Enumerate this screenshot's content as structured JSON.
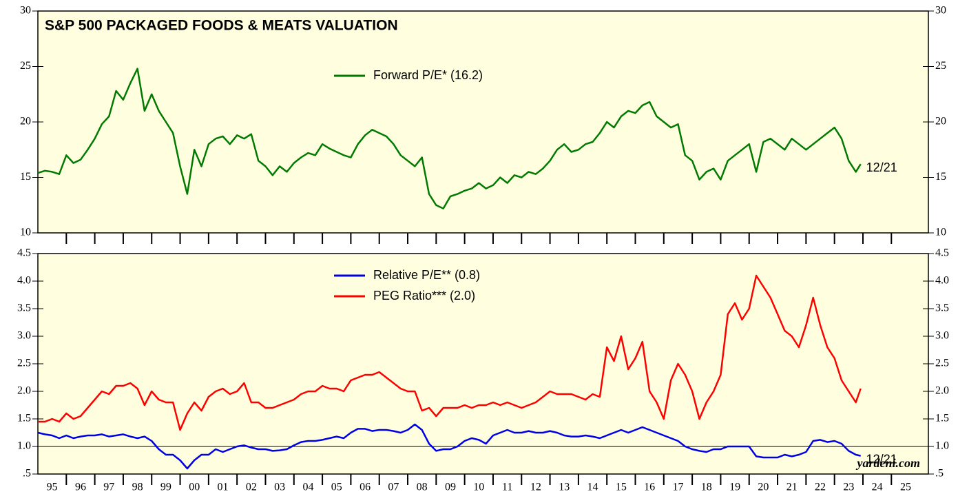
{
  "chart_data": [
    {
      "type": "line",
      "title": "S&P 500 PACKAGED FOODS & MEATS VALUATION",
      "x": [
        1995,
        1995.25,
        1995.5,
        1995.75,
        1996,
        1996.25,
        1996.5,
        1996.75,
        1997,
        1997.25,
        1997.5,
        1997.75,
        1998,
        1998.25,
        1998.5,
        1998.75,
        1999,
        1999.25,
        1999.5,
        1999.75,
        2000,
        2000.25,
        2000.5,
        2000.75,
        2001,
        2001.25,
        2001.5,
        2001.75,
        2002,
        2002.25,
        2002.5,
        2002.75,
        2003,
        2003.25,
        2003.5,
        2003.75,
        2004,
        2004.25,
        2004.5,
        2004.75,
        2005,
        2005.25,
        2005.5,
        2005.75,
        2006,
        2006.25,
        2006.5,
        2006.75,
        2007,
        2007.25,
        2007.5,
        2007.75,
        2008,
        2008.25,
        2008.5,
        2008.75,
        2009,
        2009.25,
        2009.5,
        2009.75,
        2010,
        2010.25,
        2010.5,
        2010.75,
        2011,
        2011.25,
        2011.5,
        2011.75,
        2012,
        2012.25,
        2012.5,
        2012.75,
        2013,
        2013.25,
        2013.5,
        2013.75,
        2014,
        2014.25,
        2014.5,
        2014.75,
        2015,
        2015.25,
        2015.5,
        2015.75,
        2016,
        2016.25,
        2016.5,
        2016.75,
        2017,
        2017.25,
        2017.5,
        2017.75,
        2018,
        2018.25,
        2018.5,
        2018.75,
        2019,
        2019.25,
        2019.5,
        2019.75,
        2020,
        2020.25,
        2020.5,
        2020.75,
        2021,
        2021.25,
        2021.5,
        2021.75,
        2022,
        2022.25,
        2022.5,
        2022.75,
        2023,
        2023.25,
        2023.5,
        2023.75,
        2023.92
      ],
      "xlim": [
        1995,
        2026.3
      ],
      "ylim": [
        10,
        30
      ],
      "yticks": [
        10,
        15,
        20,
        25,
        30
      ],
      "legend": "top-center",
      "series": [
        {
          "name": "Forward P/E* (16.2)",
          "color": "#007a00",
          "values": [
            15.4,
            15.6,
            15.5,
            15.3,
            17.0,
            16.3,
            16.6,
            17.5,
            18.5,
            19.8,
            20.5,
            22.8,
            22.0,
            23.5,
            24.8,
            21.0,
            22.5,
            21.0,
            20.0,
            19.0,
            16.0,
            13.5,
            17.5,
            16.0,
            18.0,
            18.5,
            18.7,
            18.0,
            18.8,
            18.5,
            18.9,
            16.5,
            16.0,
            15.2,
            16.0,
            15.5,
            16.3,
            16.8,
            17.2,
            17.0,
            18.0,
            17.6,
            17.3,
            17.0,
            16.8,
            18.0,
            18.8,
            19.3,
            19.0,
            18.7,
            18.0,
            17.0,
            16.5,
            16.0,
            16.8,
            13.5,
            12.5,
            12.2,
            13.3,
            13.5,
            13.8,
            14.0,
            14.5,
            14.0,
            14.3,
            15.0,
            14.5,
            15.2,
            15.0,
            15.5,
            15.3,
            15.8,
            16.5,
            17.5,
            18.0,
            17.3,
            17.5,
            18.0,
            18.2,
            19.0,
            20.0,
            19.5,
            20.5,
            21.0,
            20.8,
            21.5,
            21.8,
            20.5,
            20.0,
            19.5,
            19.8,
            17.0,
            16.5,
            14.8,
            15.5,
            15.8,
            14.8,
            16.5,
            17.0,
            17.5,
            18.0,
            15.5,
            18.2,
            18.5,
            18.0,
            17.5,
            18.5,
            18.0,
            17.5,
            18.0,
            18.5,
            19.0,
            19.5,
            18.5,
            16.5,
            15.5,
            16.2
          ]
        }
      ],
      "annotations": [
        {
          "text": "12/21"
        }
      ]
    },
    {
      "type": "line",
      "x": [
        1995,
        1995.25,
        1995.5,
        1995.75,
        1996,
        1996.25,
        1996.5,
        1996.75,
        1997,
        1997.25,
        1997.5,
        1997.75,
        1998,
        1998.25,
        1998.5,
        1998.75,
        1999,
        1999.25,
        1999.5,
        1999.75,
        2000,
        2000.25,
        2000.5,
        2000.75,
        2001,
        2001.25,
        2001.5,
        2001.75,
        2002,
        2002.25,
        2002.5,
        2002.75,
        2003,
        2003.25,
        2003.5,
        2003.75,
        2004,
        2004.25,
        2004.5,
        2004.75,
        2005,
        2005.25,
        2005.5,
        2005.75,
        2006,
        2006.25,
        2006.5,
        2006.75,
        2007,
        2007.25,
        2007.5,
        2007.75,
        2008,
        2008.25,
        2008.5,
        2008.75,
        2009,
        2009.25,
        2009.5,
        2009.75,
        2010,
        2010.25,
        2010.5,
        2010.75,
        2011,
        2011.25,
        2011.5,
        2011.75,
        2012,
        2012.25,
        2012.5,
        2012.75,
        2013,
        2013.25,
        2013.5,
        2013.75,
        2014,
        2014.25,
        2014.5,
        2014.75,
        2015,
        2015.25,
        2015.5,
        2015.75,
        2016,
        2016.25,
        2016.5,
        2016.75,
        2017,
        2017.25,
        2017.5,
        2017.75,
        2018,
        2018.25,
        2018.5,
        2018.75,
        2019,
        2019.25,
        2019.5,
        2019.75,
        2020,
        2020.25,
        2020.5,
        2020.75,
        2021,
        2021.25,
        2021.5,
        2021.75,
        2022,
        2022.25,
        2022.5,
        2022.75,
        2023,
        2023.25,
        2023.5,
        2023.75,
        2023.92
      ],
      "xlim": [
        1995,
        2026.3
      ],
      "xticks": [
        {
          "value": 1995,
          "label": "95"
        },
        {
          "value": 1996,
          "label": "96"
        },
        {
          "value": 1997,
          "label": "97"
        },
        {
          "value": 1998,
          "label": "98"
        },
        {
          "value": 1999,
          "label": "99"
        },
        {
          "value": 2000,
          "label": "00"
        },
        {
          "value": 2001,
          "label": "01"
        },
        {
          "value": 2002,
          "label": "02"
        },
        {
          "value": 2003,
          "label": "03"
        },
        {
          "value": 2004,
          "label": "04"
        },
        {
          "value": 2005,
          "label": "05"
        },
        {
          "value": 2006,
          "label": "06"
        },
        {
          "value": 2007,
          "label": "07"
        },
        {
          "value": 2008,
          "label": "08"
        },
        {
          "value": 2009,
          "label": "09"
        },
        {
          "value": 2010,
          "label": "10"
        },
        {
          "value": 2011,
          "label": "11"
        },
        {
          "value": 2012,
          "label": "12"
        },
        {
          "value": 2013,
          "label": "13"
        },
        {
          "value": 2014,
          "label": "14"
        },
        {
          "value": 2015,
          "label": "15"
        },
        {
          "value": 2016,
          "label": "16"
        },
        {
          "value": 2017,
          "label": "17"
        },
        {
          "value": 2018,
          "label": "18"
        },
        {
          "value": 2019,
          "label": "19"
        },
        {
          "value": 2020,
          "label": "20"
        },
        {
          "value": 2021,
          "label": "21"
        },
        {
          "value": 2022,
          "label": "22"
        },
        {
          "value": 2023,
          "label": "23"
        },
        {
          "value": 2024,
          "label": "24"
        },
        {
          "value": 2025,
          "label": "25"
        }
      ],
      "ylim": [
        0.5,
        4.5
      ],
      "yticks": [
        {
          "value": 0.5,
          "label": ".5"
        },
        {
          "value": 1,
          "label": "1.0"
        },
        1.5,
        {
          "value": 2,
          "label": "2.0"
        },
        2.5,
        {
          "value": 3,
          "label": "3.0"
        },
        3.5,
        {
          "value": 4,
          "label": "4.0"
        },
        4.5
      ],
      "hline": 1,
      "legend": "top-center",
      "series": [
        {
          "name": "Relative P/E** (0.8)",
          "color": "#0000e6",
          "values": [
            1.25,
            1.22,
            1.2,
            1.15,
            1.2,
            1.15,
            1.18,
            1.2,
            1.2,
            1.22,
            1.18,
            1.2,
            1.22,
            1.18,
            1.15,
            1.18,
            1.1,
            0.95,
            0.85,
            0.85,
            0.75,
            0.6,
            0.75,
            0.85,
            0.85,
            0.95,
            0.9,
            0.95,
            1.0,
            1.02,
            0.98,
            0.95,
            0.95,
            0.92,
            0.93,
            0.95,
            1.02,
            1.08,
            1.1,
            1.1,
            1.12,
            1.15,
            1.18,
            1.15,
            1.25,
            1.32,
            1.32,
            1.28,
            1.3,
            1.3,
            1.28,
            1.25,
            1.3,
            1.4,
            1.3,
            1.05,
            0.92,
            0.95,
            0.95,
            1.0,
            1.1,
            1.15,
            1.12,
            1.05,
            1.2,
            1.25,
            1.3,
            1.25,
            1.25,
            1.28,
            1.25,
            1.25,
            1.28,
            1.25,
            1.2,
            1.18,
            1.18,
            1.2,
            1.18,
            1.15,
            1.2,
            1.25,
            1.3,
            1.25,
            1.3,
            1.35,
            1.3,
            1.25,
            1.2,
            1.15,
            1.1,
            1.0,
            0.95,
            0.92,
            0.9,
            0.95,
            0.95,
            1.0,
            1.0,
            1.0,
            1.0,
            0.82,
            0.8,
            0.8,
            0.8,
            0.85,
            0.82,
            0.85,
            0.9,
            1.1,
            1.12,
            1.08,
            1.1,
            1.05,
            0.92,
            0.85,
            0.83
          ]
        },
        {
          "name": "PEG Ratio*** (2.0)",
          "color": "#ff0000",
          "values": [
            1.45,
            1.45,
            1.5,
            1.45,
            1.6,
            1.5,
            1.55,
            1.7,
            1.85,
            2.0,
            1.95,
            2.1,
            2.1,
            2.15,
            2.05,
            1.75,
            2.0,
            1.85,
            1.8,
            1.8,
            1.3,
            1.6,
            1.8,
            1.65,
            1.9,
            2.0,
            2.05,
            1.95,
            2.0,
            2.15,
            1.8,
            1.8,
            1.7,
            1.7,
            1.75,
            1.8,
            1.85,
            1.95,
            2.0,
            2.0,
            2.1,
            2.05,
            2.05,
            2.0,
            2.2,
            2.25,
            2.3,
            2.3,
            2.35,
            2.25,
            2.15,
            2.05,
            2.0,
            2.0,
            1.65,
            1.7,
            1.55,
            1.7,
            1.7,
            1.7,
            1.75,
            1.7,
            1.75,
            1.75,
            1.8,
            1.75,
            1.8,
            1.75,
            1.7,
            1.75,
            1.8,
            1.9,
            2.0,
            1.95,
            1.95,
            1.95,
            1.9,
            1.85,
            1.95,
            1.9,
            2.8,
            2.55,
            3.0,
            2.4,
            2.6,
            2.9,
            2.0,
            1.8,
            1.5,
            2.2,
            2.5,
            2.3,
            2.0,
            1.5,
            1.8,
            2.0,
            2.3,
            3.4,
            3.6,
            3.3,
            3.5,
            4.1,
            3.9,
            3.7,
            3.4,
            3.1,
            3.0,
            2.8,
            3.2,
            3.7,
            3.2,
            2.8,
            2.6,
            2.2,
            2.0,
            1.8,
            2.05
          ]
        }
      ],
      "annotations": [
        {
          "text": "12/21"
        }
      ],
      "credit": "yardeni.com"
    }
  ]
}
